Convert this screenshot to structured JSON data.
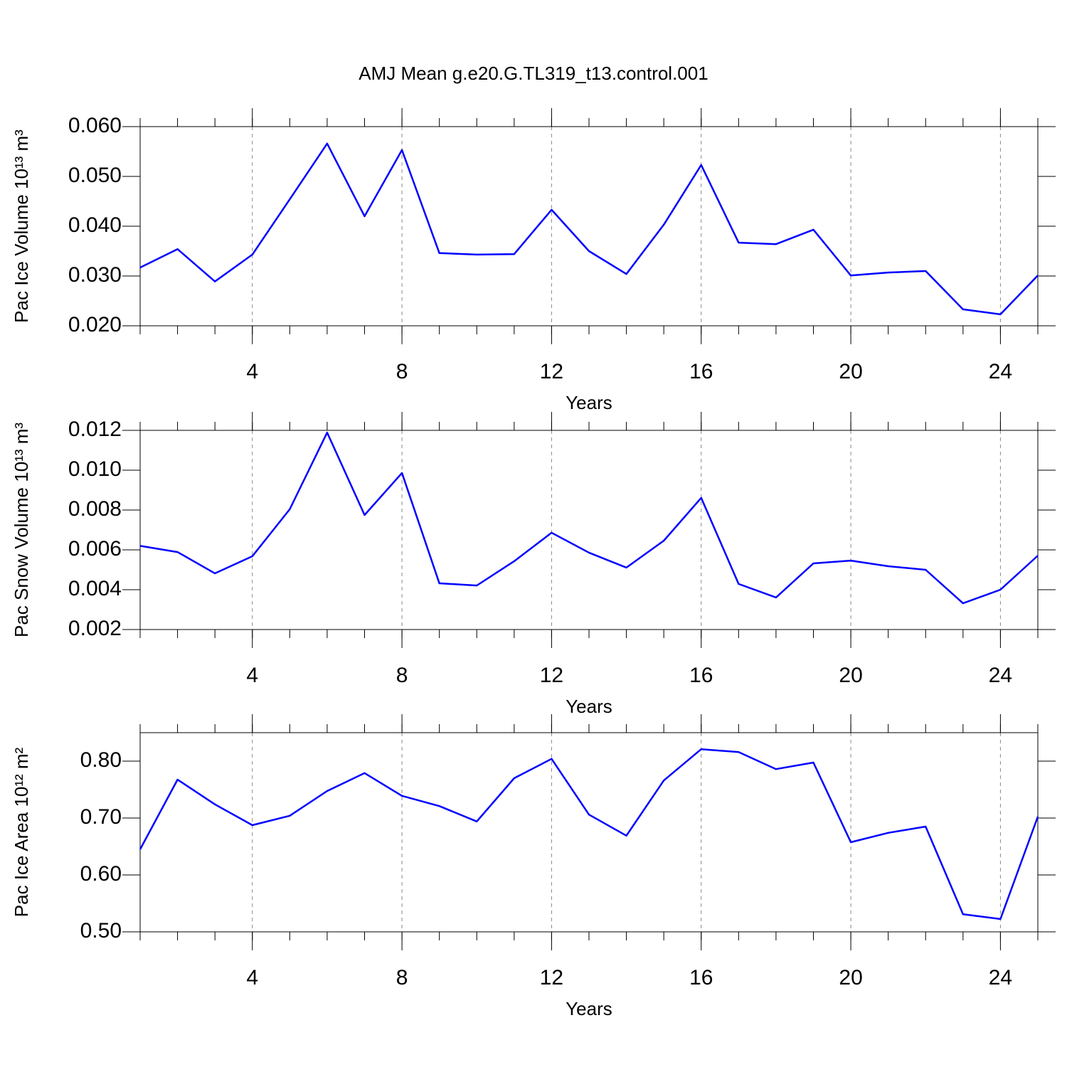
{
  "chart_data": [
    {
      "type": "line",
      "title": "AMJ Mean g.e20.G.TL319_t13.control.001",
      "xlabel": "Years",
      "ylabel": "Pac Ice Volume 10¹³ m³",
      "x": [
        1,
        2,
        3,
        4,
        5,
        6,
        7,
        8,
        9,
        10,
        11,
        12,
        13,
        14,
        15,
        16,
        17,
        18,
        19,
        20,
        21,
        22,
        23,
        24,
        25
      ],
      "series": [
        {
          "color": "#0000ff",
          "values": [
            0.0317,
            0.0354,
            0.0289,
            0.0343,
            0.0454,
            0.0566,
            0.042,
            0.0553,
            0.0346,
            0.0343,
            0.0344,
            0.0433,
            0.035,
            0.0304,
            0.0403,
            0.0523,
            0.0367,
            0.0364,
            0.0393,
            0.0301,
            0.0307,
            0.031,
            0.0233,
            0.0223,
            0.0301
          ]
        }
      ],
      "xlim": [
        1,
        25
      ],
      "xticks": [
        4,
        8,
        12,
        16,
        20,
        24
      ],
      "ylim": [
        0.02,
        0.06
      ],
      "yticks": [
        {
          "value": 0.02,
          "label": "0.020"
        },
        {
          "value": 0.03,
          "label": "0.030"
        },
        {
          "value": 0.04,
          "label": "0.040"
        },
        {
          "value": 0.05,
          "label": "0.050"
        },
        {
          "value": 0.06,
          "label": "0.060"
        }
      ],
      "grid": "x-dashed"
    },
    {
      "type": "line",
      "xlabel": "Years",
      "ylabel": "Pac Snow Volume 10¹³ m³",
      "x": [
        1,
        2,
        3,
        4,
        5,
        6,
        7,
        8,
        9,
        10,
        11,
        12,
        13,
        14,
        15,
        16,
        17,
        18,
        19,
        20,
        21,
        22,
        23,
        24,
        25
      ],
      "series": [
        {
          "color": "#0000ff",
          "values": [
            0.0062,
            0.00589,
            0.00482,
            0.00568,
            0.00804,
            0.01189,
            0.00775,
            0.00986,
            0.00432,
            0.00421,
            0.00543,
            0.00686,
            0.00586,
            0.00511,
            0.00646,
            0.00861,
            0.00429,
            0.00361,
            0.00532,
            0.00546,
            0.00518,
            0.005,
            0.00332,
            0.004,
            0.00571
          ]
        }
      ],
      "xlim": [
        1,
        25
      ],
      "xticks": [
        4,
        8,
        12,
        16,
        20,
        24
      ],
      "ylim": [
        0.002,
        0.012
      ],
      "yticks": [
        {
          "value": 0.002,
          "label": "0.002"
        },
        {
          "value": 0.004,
          "label": "0.004"
        },
        {
          "value": 0.006,
          "label": "0.006"
        },
        {
          "value": 0.008,
          "label": "0.008"
        },
        {
          "value": 0.01,
          "label": "0.010"
        },
        {
          "value": 0.012,
          "label": "0.012"
        }
      ],
      "grid": "x-dashed"
    },
    {
      "type": "line",
      "xlabel": "Years",
      "ylabel": "Pac Ice Area 10¹² m²",
      "x": [
        1,
        2,
        3,
        4,
        5,
        6,
        7,
        8,
        9,
        10,
        11,
        12,
        13,
        14,
        15,
        16,
        17,
        18,
        19,
        20,
        21,
        22,
        23,
        24,
        25
      ],
      "series": [
        {
          "color": "#0000ff",
          "values": [
            0.645,
            0.7675,
            0.724,
            0.6875,
            0.704,
            0.7475,
            0.779,
            0.739,
            0.721,
            0.694,
            0.77,
            0.804,
            0.706,
            0.669,
            0.766,
            0.821,
            0.816,
            0.786,
            0.7975,
            0.6575,
            0.674,
            0.685,
            0.531,
            0.5225,
            0.7025
          ]
        }
      ],
      "xlim": [
        1,
        25
      ],
      "xticks": [
        4,
        8,
        12,
        16,
        20,
        24
      ],
      "ylim": [
        0.5,
        0.85
      ],
      "yticks": [
        {
          "value": 0.5,
          "label": "0.50"
        },
        {
          "value": 0.6,
          "label": "0.60"
        },
        {
          "value": 0.7,
          "label": "0.70"
        },
        {
          "value": 0.8,
          "label": "0.80"
        }
      ],
      "grid": "x-dashed"
    }
  ]
}
